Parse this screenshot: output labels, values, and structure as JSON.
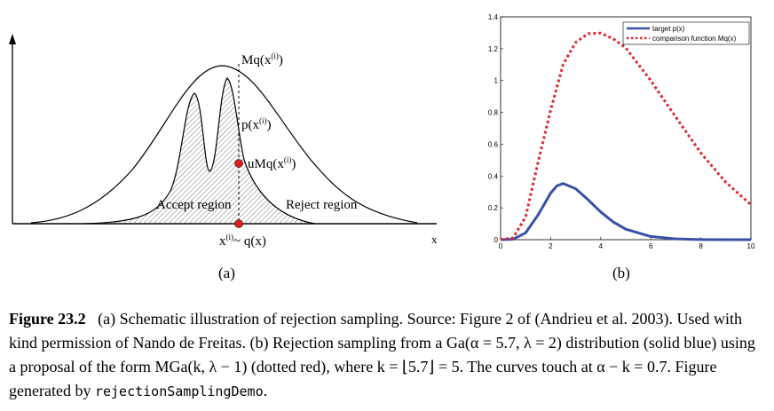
{
  "panel_a": {
    "label": "(a)",
    "mq_label": "Mq(x",
    "p_label": "p(x",
    "u_label": "uMq(x",
    "x_label": "x",
    "x_sample_label": "~ q(x)",
    "sup": "(i)",
    "accept": "Accept region",
    "reject": "Reject region",
    "axis_end": "x"
  },
  "panel_b": {
    "label": "(b)",
    "legend": [
      "target p(x)",
      "comparison function Mq(x)"
    ],
    "colors": {
      "target": "#3a4fa6",
      "comparison": "#e0282d"
    }
  },
  "caption": {
    "figure": "Figure 23.2",
    "text1": "(a) Schematic illustration of rejection sampling.   Source: Figure 2 of (Andrieu et al. 2003). Used with kind permission of Nando de Freitas.  (b) Rejection sampling from a Ga(α = 5.7, λ = 2) distribution (solid blue) using a proposal of the form MGa(k, λ − 1) (dotted red), where k = ⌊5.7⌋ = 5. The curves touch at α − k = 0.7. Figure generated by ",
    "code": "rejectionSamplingDemo",
    "end": "."
  },
  "chart_data": {
    "type": "line",
    "xlim": [
      0,
      10
    ],
    "ylim": [
      0,
      1.4
    ],
    "x_ticks": [
      0,
      2,
      4,
      6,
      8,
      10
    ],
    "y_ticks": [
      0,
      0.2,
      0.4,
      0.6,
      0.8,
      1,
      1.2,
      1.4
    ],
    "y_tick_labels": [
      "0",
      "0.2",
      "0.4",
      "0.6",
      "0.8",
      "1",
      "1.2",
      "1.4"
    ],
    "legend_position": "top-right",
    "series": [
      {
        "name": "target p(x)",
        "style": "solid",
        "x": [
          0,
          0.5,
          1,
          1.5,
          2,
          2.25,
          2.5,
          3,
          3.5,
          4,
          4.5,
          5,
          6,
          7,
          8,
          9,
          10
        ],
        "y": [
          0,
          0.003,
          0.043,
          0.156,
          0.293,
          0.338,
          0.353,
          0.32,
          0.25,
          0.174,
          0.111,
          0.066,
          0.02,
          0.005,
          0.001,
          0.0003,
          0.0001
        ]
      },
      {
        "name": "comparison function Mq(x)",
        "style": "dotted",
        "x": [
          0,
          0.5,
          1,
          1.5,
          2,
          2.5,
          3,
          3.5,
          4,
          4.5,
          5,
          6,
          7,
          8,
          9,
          10
        ],
        "y": [
          0,
          0.012,
          0.143,
          0.489,
          0.815,
          1.102,
          1.24,
          1.295,
          1.298,
          1.262,
          1.205,
          1.0,
          0.77,
          0.545,
          0.36,
          0.22
        ]
      }
    ]
  }
}
